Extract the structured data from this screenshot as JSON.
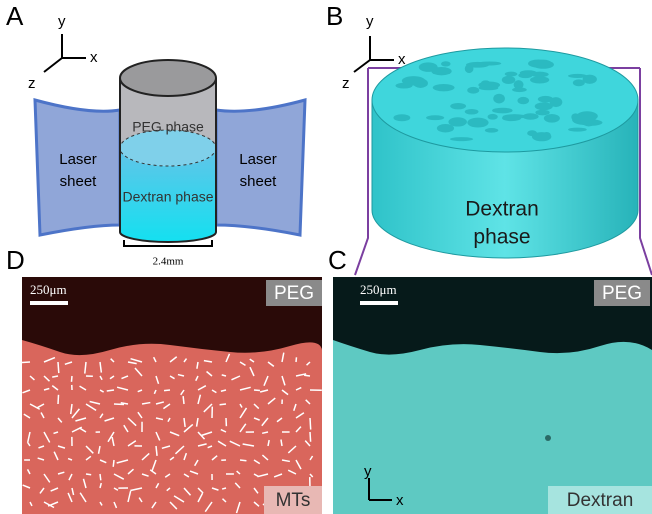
{
  "panels": {
    "A": {
      "label": "A",
      "axes": {
        "y": "y",
        "x": "x",
        "z": "z"
      },
      "top_phase": "PEG phase",
      "bottom_phase": "Dextran phase",
      "left_sheet": [
        "Laser",
        "sheet"
      ],
      "right_sheet": [
        "Laser",
        "sheet"
      ],
      "scale": "2.4mm"
    },
    "B": {
      "label": "B",
      "axes": {
        "y": "y",
        "x": "x",
        "z": "z"
      },
      "phase": [
        "Dextran",
        "phase"
      ]
    },
    "C": {
      "label": "C",
      "scale_bar": "250μm",
      "top_tag": "PEG",
      "bottom_tag": "Dextran",
      "axes": {
        "y": "y",
        "x": "x"
      }
    },
    "D": {
      "label": "D",
      "scale_bar": "250μm",
      "top_tag": "PEG",
      "bottom_tag": "MTs"
    }
  }
}
